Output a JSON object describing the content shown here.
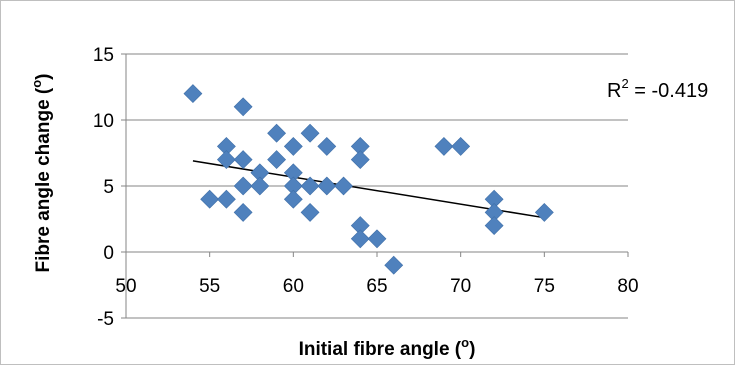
{
  "chart_data": {
    "type": "scatter",
    "xlabel": "Initial fibre angle (",
    "xlabel_sup": "o",
    "xlabel_end": ")",
    "ylabel": "Fibre angle change (",
    "ylabel_sup": "o",
    "ylabel_end": ")",
    "xlim": [
      50,
      80
    ],
    "ylim": [
      -5,
      15
    ],
    "x_ticks": [
      50,
      55,
      60,
      65,
      70,
      75,
      80
    ],
    "y_ticks": [
      -5,
      0,
      5,
      10,
      15
    ],
    "x_tick_labels": [
      "50",
      "55",
      "60",
      "65",
      "70",
      "75",
      "80"
    ],
    "y_tick_labels": [
      "-5",
      "0",
      "5",
      "10",
      "15"
    ],
    "grid": {
      "horizontal": true,
      "vertical": false
    },
    "legend": "none",
    "marker": "diamond",
    "marker_color": "#4f81bd",
    "trendline_color": "#000000",
    "annotation": {
      "prefix": "R",
      "sup": "2",
      "text": " = -0.419"
    },
    "points": [
      {
        "x": 54,
        "y": 12
      },
      {
        "x": 55,
        "y": 4
      },
      {
        "x": 56,
        "y": 8
      },
      {
        "x": 56,
        "y": 7
      },
      {
        "x": 56,
        "y": 4
      },
      {
        "x": 57,
        "y": 11
      },
      {
        "x": 57,
        "y": 7
      },
      {
        "x": 57,
        "y": 5
      },
      {
        "x": 57,
        "y": 3
      },
      {
        "x": 58,
        "y": 6
      },
      {
        "x": 58,
        "y": 5
      },
      {
        "x": 59,
        "y": 9
      },
      {
        "x": 59,
        "y": 7
      },
      {
        "x": 60,
        "y": 8
      },
      {
        "x": 60,
        "y": 6
      },
      {
        "x": 60,
        "y": 5
      },
      {
        "x": 60,
        "y": 4
      },
      {
        "x": 61,
        "y": 9
      },
      {
        "x": 61,
        "y": 5
      },
      {
        "x": 61,
        "y": 3
      },
      {
        "x": 62,
        "y": 8
      },
      {
        "x": 62,
        "y": 5
      },
      {
        "x": 63,
        "y": 5
      },
      {
        "x": 64,
        "y": 8
      },
      {
        "x": 64,
        "y": 7
      },
      {
        "x": 64,
        "y": 2
      },
      {
        "x": 64,
        "y": 1
      },
      {
        "x": 65,
        "y": 1
      },
      {
        "x": 66,
        "y": -1
      },
      {
        "x": 69,
        "y": 8
      },
      {
        "x": 70,
        "y": 8
      },
      {
        "x": 72,
        "y": 4
      },
      {
        "x": 72,
        "y": 3
      },
      {
        "x": 72,
        "y": 2
      },
      {
        "x": 75,
        "y": 3
      }
    ],
    "trendline": [
      {
        "x": 54,
        "y": 6.9
      },
      {
        "x": 75,
        "y": 2.6
      }
    ]
  }
}
